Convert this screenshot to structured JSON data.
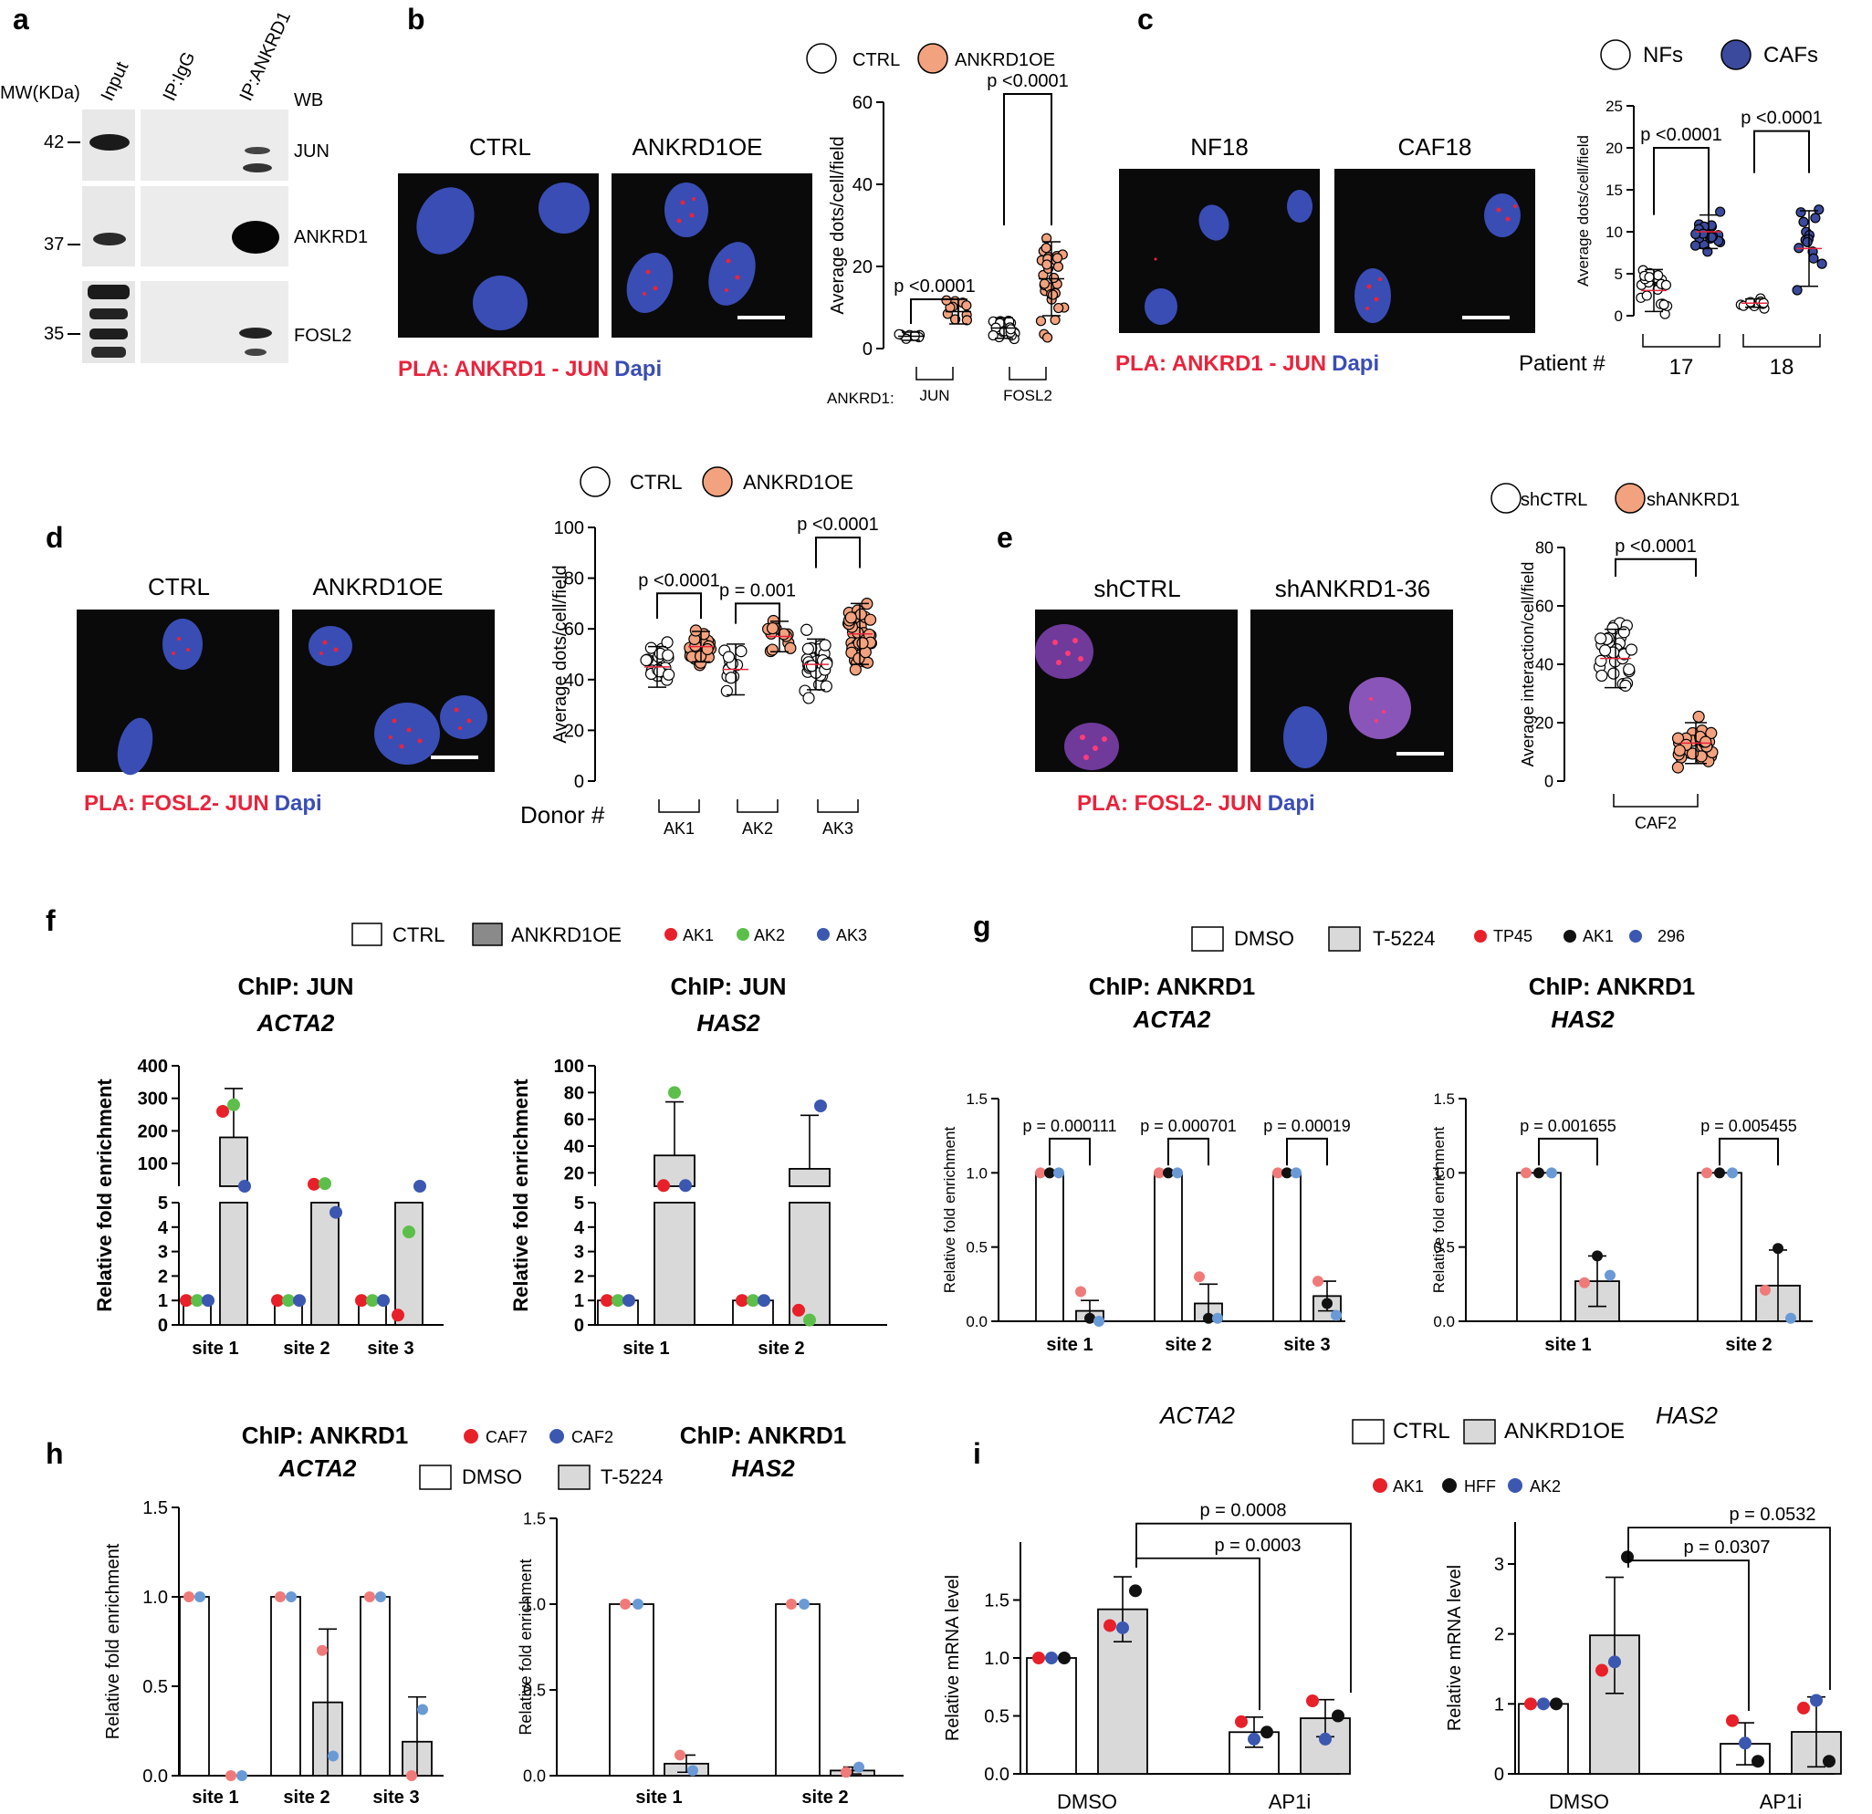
{
  "panels": {
    "a": {
      "letter": "a",
      "mw_label": "MW(KDa)",
      "lanes": [
        "Input",
        "IP:IgG",
        "IP:ANKRD1"
      ],
      "wb": "WB",
      "markers": [
        "42",
        "37",
        "35"
      ],
      "bands": [
        "JUN",
        "ANKRD1",
        "FOSL2"
      ]
    },
    "b": {
      "letter": "b",
      "images": [
        "CTRL",
        "ANKRD1OE"
      ],
      "caption_red": "PLA: ANKRD1 - JUN",
      "caption_blue": "Dapi",
      "legend": [
        "CTRL",
        "ANKRD1OE"
      ],
      "row_label": "ANKRD1:",
      "groups": [
        "JUN",
        "FOSL2"
      ],
      "pvals": [
        "p <0.0001",
        "p <0.0001"
      ]
    },
    "c": {
      "letter": "c",
      "images": [
        "NF18",
        "CAF18"
      ],
      "caption_red": "PLA: ANKRD1 - JUN",
      "caption_blue": "Dapi",
      "legend": [
        "NFs",
        "CAFs"
      ],
      "row_label": "Patient #",
      "groups": [
        "17",
        "18"
      ],
      "pvals": [
        "p <0.0001",
        "p <0.0001"
      ]
    },
    "d": {
      "letter": "d",
      "images": [
        "CTRL",
        "ANKRD1OE"
      ],
      "caption_red": "PLA: FOSL2- JUN",
      "caption_blue": "Dapi",
      "legend": [
        "CTRL",
        "ANKRD1OE"
      ],
      "row_label": "Donor #",
      "groups": [
        "AK1",
        "AK2",
        "AK3"
      ],
      "pvals": [
        "p <0.0001",
        "p = 0.001",
        "p <0.0001"
      ]
    },
    "e": {
      "letter": "e",
      "images": [
        "shCTRL",
        "shANKRD1-36"
      ],
      "caption_red": "PLA: FOSL2- JUN",
      "caption_blue": "Dapi",
      "legend": [
        "shCTRL",
        "shANKRD1"
      ],
      "groups": [
        "CAF2"
      ],
      "pvals": [
        "p <0.0001"
      ]
    },
    "f": {
      "letter": "f",
      "legend": [
        "CTRL",
        "ANKRD1OE"
      ],
      "donors": [
        "AK1",
        "AK2",
        "AK3"
      ],
      "titles": [
        "ChIP: JUN",
        "ChIP: JUN"
      ],
      "genes": [
        "ACTA2",
        "HAS2"
      ]
    },
    "g": {
      "letter": "g",
      "legend": [
        "DMSO",
        "T-5224"
      ],
      "donors": [
        "TP45",
        "AK1",
        "296"
      ],
      "titles": [
        "ChIP: ANKRD1",
        "ChIP: ANKRD1"
      ],
      "genes": [
        "ACTA2",
        "HAS2"
      ],
      "pvals_acta2": [
        "p = 0.000111",
        "p = 0.000701",
        "p = 0.00019"
      ],
      "pvals_has2": [
        "p = 0.001655",
        "p = 0.005455"
      ]
    },
    "h": {
      "letter": "h",
      "legend": [
        "DMSO",
        "T-5224"
      ],
      "donors": [
        "CAF7",
        "CAF2"
      ],
      "titles": [
        "ChIP: ANKRD1",
        "ChIP: ANKRD1"
      ],
      "genes": [
        "ACTA2",
        "HAS2"
      ]
    },
    "i": {
      "letter": "i",
      "legend": [
        "CTRL",
        "ANKRD1OE"
      ],
      "donors": [
        "AK1",
        "HFF",
        "AK2"
      ],
      "genes": [
        "ACTA2",
        "HAS2"
      ],
      "pvals_acta2": [
        "p = 0.0008",
        "p = 0.0003"
      ],
      "pvals_has2": [
        "p = 0.0532",
        "p = 0.0307"
      ]
    }
  },
  "colors": {
    "pla_red": "#e8243c",
    "dapi_blue": "#3a4db5",
    "salmon": "#f2a27e",
    "navy": "#3b4a9c",
    "gray_bar": "#d9d9d9",
    "red_dot": "#e8202a",
    "green_dot": "#5cbf4a",
    "blue_dot": "#3b57b0",
    "light_red": "#f07a7a",
    "light_blue": "#6a9ad6"
  },
  "chart_data": [
    {
      "id": "b",
      "type": "scatter",
      "ylabel": "Average dots/cell/field",
      "ylim": [
        0,
        60
      ],
      "yticks": [
        "0",
        "20",
        "40",
        "60"
      ],
      "categories": [
        "JUN",
        "FOSL2"
      ],
      "series": [
        {
          "name": "CTRL",
          "values": [
            3,
            5
          ]
        },
        {
          "name": "ANKRD1OE",
          "values": [
            9,
            17
          ]
        }
      ]
    },
    {
      "id": "c",
      "type": "scatter",
      "ylabel": "Average dots/cell/field",
      "ylim": [
        0,
        25
      ],
      "yticks": [
        "0",
        "5",
        "10",
        "15",
        "20",
        "25"
      ],
      "categories": [
        "17",
        "18"
      ],
      "series": [
        {
          "name": "NFs",
          "values": [
            3,
            1.5
          ]
        },
        {
          "name": "CAFs",
          "values": [
            10,
            8
          ]
        }
      ]
    },
    {
      "id": "d",
      "type": "scatter",
      "ylabel": "Average dots/cell/field",
      "ylim": [
        0,
        100
      ],
      "yticks": [
        "0",
        "20",
        "40",
        "60",
        "80",
        "100"
      ],
      "categories": [
        "AK1",
        "AK2",
        "AK3"
      ],
      "series": [
        {
          "name": "CTRL",
          "values": [
            45,
            44,
            46
          ]
        },
        {
          "name": "ANKRD1OE",
          "values": [
            53,
            57,
            58
          ]
        }
      ]
    },
    {
      "id": "e",
      "type": "scatter",
      "ylabel": "Average interaction/cell/field",
      "ylim": [
        0,
        80
      ],
      "yticks": [
        "0",
        "20",
        "40",
        "60",
        "80"
      ],
      "categories": [
        "CAF2"
      ],
      "series": [
        {
          "name": "shCTRL",
          "values": [
            42
          ]
        },
        {
          "name": "shANKRD1",
          "values": [
            13
          ]
        }
      ]
    },
    {
      "id": "f_acta2",
      "type": "bar",
      "ylabel": "Relative fold enrichment",
      "yticks_low": [
        "0",
        "1",
        "2",
        "3",
        "4",
        "5"
      ],
      "yticks_high": [
        "100",
        "200",
        "300",
        "400"
      ],
      "categories": [
        "site 1",
        "site 2",
        "site 3"
      ],
      "series": [
        {
          "name": "CTRL",
          "values": [
            1,
            1,
            1
          ]
        },
        {
          "name": "ANKRD1OE",
          "values": [
            180,
            30,
            8
          ]
        }
      ]
    },
    {
      "id": "f_has2",
      "type": "bar",
      "ylabel": "Relative fold enrichment",
      "yticks_low": [
        "0",
        "1",
        "2",
        "3",
        "4",
        "5"
      ],
      "yticks_high": [
        "20",
        "40",
        "60",
        "80",
        "100"
      ],
      "categories": [
        "site 1",
        "site 2"
      ],
      "series": [
        {
          "name": "CTRL",
          "values": [
            1,
            1
          ]
        },
        {
          "name": "ANKRD1OE",
          "values": [
            33,
            23
          ]
        }
      ]
    },
    {
      "id": "g_acta2",
      "type": "bar",
      "ylabel": "Relative fold enrichment",
      "ylim": [
        0,
        1.5
      ],
      "yticks": [
        "0.0",
        "0.5",
        "1.0",
        "1.5"
      ],
      "categories": [
        "site 1",
        "site 2",
        "site 3"
      ],
      "series": [
        {
          "name": "DMSO",
          "values": [
            1,
            1,
            1
          ]
        },
        {
          "name": "T-5224",
          "values": [
            0.07,
            0.12,
            0.17
          ]
        }
      ]
    },
    {
      "id": "g_has2",
      "type": "bar",
      "ylabel": "Relative fold enrichment",
      "ylim": [
        0,
        1.5
      ],
      "yticks": [
        "0.0",
        "0.5",
        "1.0",
        "1.5"
      ],
      "categories": [
        "site 1",
        "site 2"
      ],
      "series": [
        {
          "name": "DMSO",
          "values": [
            1,
            1
          ]
        },
        {
          "name": "T-5224",
          "values": [
            0.27,
            0.24
          ]
        }
      ]
    },
    {
      "id": "h_acta2",
      "type": "bar",
      "ylabel": "Relative fold enrichment",
      "ylim": [
        0,
        1.5
      ],
      "yticks": [
        "0.0",
        "0.5",
        "1.0",
        "1.5"
      ],
      "categories": [
        "site 1",
        "site 2",
        "site 3"
      ],
      "series": [
        {
          "name": "DMSO",
          "values": [
            1,
            1,
            1
          ]
        },
        {
          "name": "T-5224",
          "values": [
            0.0,
            0.41,
            0.19
          ]
        }
      ]
    },
    {
      "id": "h_has2",
      "type": "bar",
      "ylabel": "Relative fold enrichment",
      "ylim": [
        0,
        1.5
      ],
      "yticks": [
        "0.0",
        "0.5",
        "1.0",
        "1.5"
      ],
      "categories": [
        "site 1",
        "site 2"
      ],
      "series": [
        {
          "name": "DMSO",
          "values": [
            1,
            1
          ]
        },
        {
          "name": "T-5224",
          "values": [
            0.07,
            0.03
          ]
        }
      ]
    },
    {
      "id": "i_acta2",
      "type": "bar",
      "ylabel": "Relative mRNA level",
      "ylim": [
        0,
        2.0
      ],
      "yticks": [
        "0.0",
        "0.5",
        "1.0",
        "1.5"
      ],
      "categories": [
        "DMSO",
        "AP1i"
      ],
      "series": [
        {
          "name": "CTRL",
          "values": [
            1.0,
            0.36
          ]
        },
        {
          "name": "ANKRD1OE",
          "values": [
            1.42,
            0.48
          ]
        }
      ]
    },
    {
      "id": "i_has2",
      "type": "bar",
      "ylabel": "Relative mRNA level",
      "ylim": [
        0,
        3.6
      ],
      "yticks": [
        "0",
        "1",
        "2",
        "3"
      ],
      "categories": [
        "DMSO",
        "AP1i"
      ],
      "series": [
        {
          "name": "CTRL",
          "values": [
            1.0,
            0.43
          ]
        },
        {
          "name": "ANKRD1OE",
          "values": [
            1.98,
            0.6
          ]
        }
      ]
    }
  ]
}
